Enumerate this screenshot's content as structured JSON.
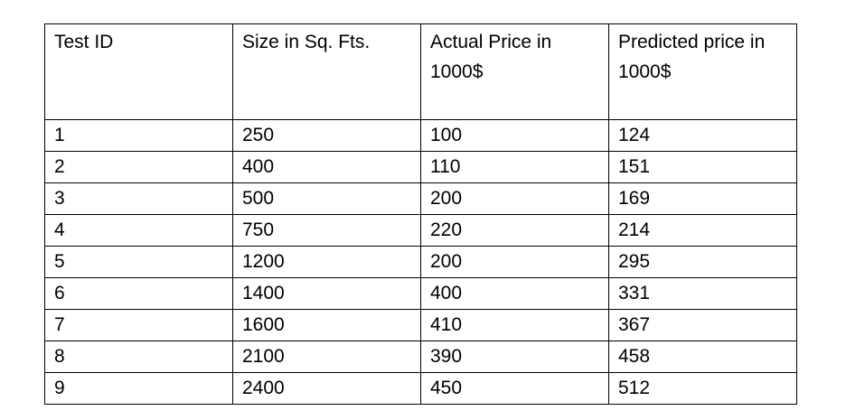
{
  "table": {
    "headers": [
      "Test ID",
      "Size in Sq. Fts.",
      "Actual Price in 1000$",
      "Predicted price in 1000$"
    ],
    "rows": [
      [
        "1",
        "250",
        "100",
        "124"
      ],
      [
        "2",
        "400",
        "110",
        "151"
      ],
      [
        "3",
        "500",
        "200",
        "169"
      ],
      [
        "4",
        "750",
        "220",
        "214"
      ],
      [
        "5",
        "1200",
        "200",
        "295"
      ],
      [
        "6",
        "1400",
        "400",
        "331"
      ],
      [
        "7",
        "1600",
        "410",
        "367"
      ],
      [
        "8",
        "2100",
        "390",
        "458"
      ],
      [
        "9",
        "2400",
        "450",
        "512"
      ]
    ]
  }
}
